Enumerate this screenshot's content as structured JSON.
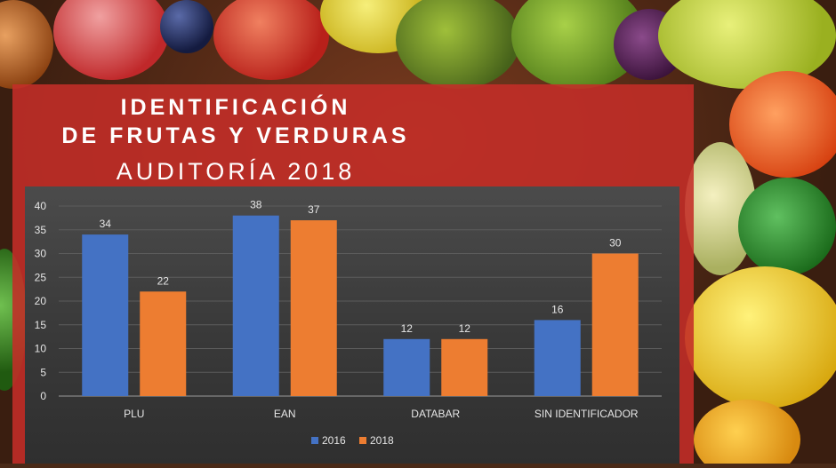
{
  "title_line1": "IDENTIFICACIÓN",
  "title_line2": "DE FRUTAS Y VERDURAS",
  "subtitle": "AUDITORÍA 2018",
  "colors": {
    "panel": "#c42e28",
    "series_2016": "#4472c4",
    "series_2018": "#ed7d31"
  },
  "chart_data": {
    "type": "bar",
    "categories": [
      "PLU",
      "EAN",
      "DATABAR",
      "SIN IDENTIFICADOR"
    ],
    "series": [
      {
        "name": "2016",
        "values": [
          34,
          38,
          12,
          16
        ],
        "color": "#4472c4"
      },
      {
        "name": "2018",
        "values": [
          22,
          37,
          12,
          30
        ],
        "color": "#ed7d31"
      }
    ],
    "yticks": [
      0,
      5,
      10,
      15,
      20,
      25,
      30,
      35,
      40
    ],
    "ylim": [
      0,
      40
    ],
    "grid": true,
    "legend": "bottom"
  }
}
